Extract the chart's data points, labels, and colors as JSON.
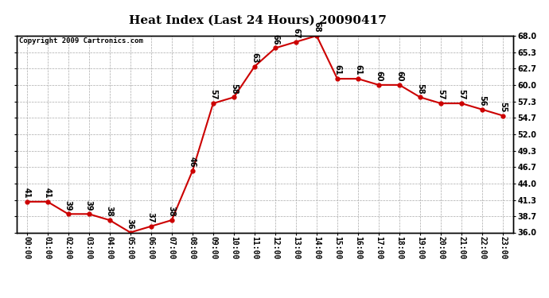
{
  "title": "Heat Index (Last 24 Hours) 20090417",
  "copyright": "Copyright 2009 Cartronics.com",
  "hours": [
    0,
    1,
    2,
    3,
    4,
    5,
    6,
    7,
    8,
    9,
    10,
    11,
    12,
    13,
    14,
    15,
    16,
    17,
    18,
    19,
    20,
    21,
    22,
    23
  ],
  "x_labels": [
    "00:00",
    "01:00",
    "02:00",
    "03:00",
    "04:00",
    "05:00",
    "06:00",
    "07:00",
    "08:00",
    "09:00",
    "10:00",
    "11:00",
    "12:00",
    "13:00",
    "14:00",
    "15:00",
    "16:00",
    "17:00",
    "18:00",
    "19:00",
    "20:00",
    "21:00",
    "22:00",
    "23:00"
  ],
  "values": [
    41,
    41,
    39,
    39,
    38,
    36,
    37,
    38,
    46,
    57,
    58,
    63,
    66,
    67,
    68,
    61,
    61,
    60,
    60,
    58,
    57,
    57,
    56,
    55
  ],
  "ylim": [
    36.0,
    68.0
  ],
  "yticks": [
    36.0,
    38.7,
    41.3,
    44.0,
    46.7,
    49.3,
    52.0,
    54.7,
    57.3,
    60.0,
    62.7,
    65.3,
    68.0
  ],
  "ytick_labels": [
    "36.0",
    "38.7",
    "41.3",
    "44.0",
    "46.7",
    "49.3",
    "52.0",
    "54.7",
    "57.3",
    "60.0",
    "62.7",
    "65.3",
    "68.0"
  ],
  "line_color": "#cc0000",
  "marker_color": "#cc0000",
  "bg_color": "#ffffff",
  "grid_color": "#aaaaaa",
  "title_fontsize": 11,
  "copyright_fontsize": 6.5,
  "tick_fontsize": 7,
  "annot_fontsize": 7
}
